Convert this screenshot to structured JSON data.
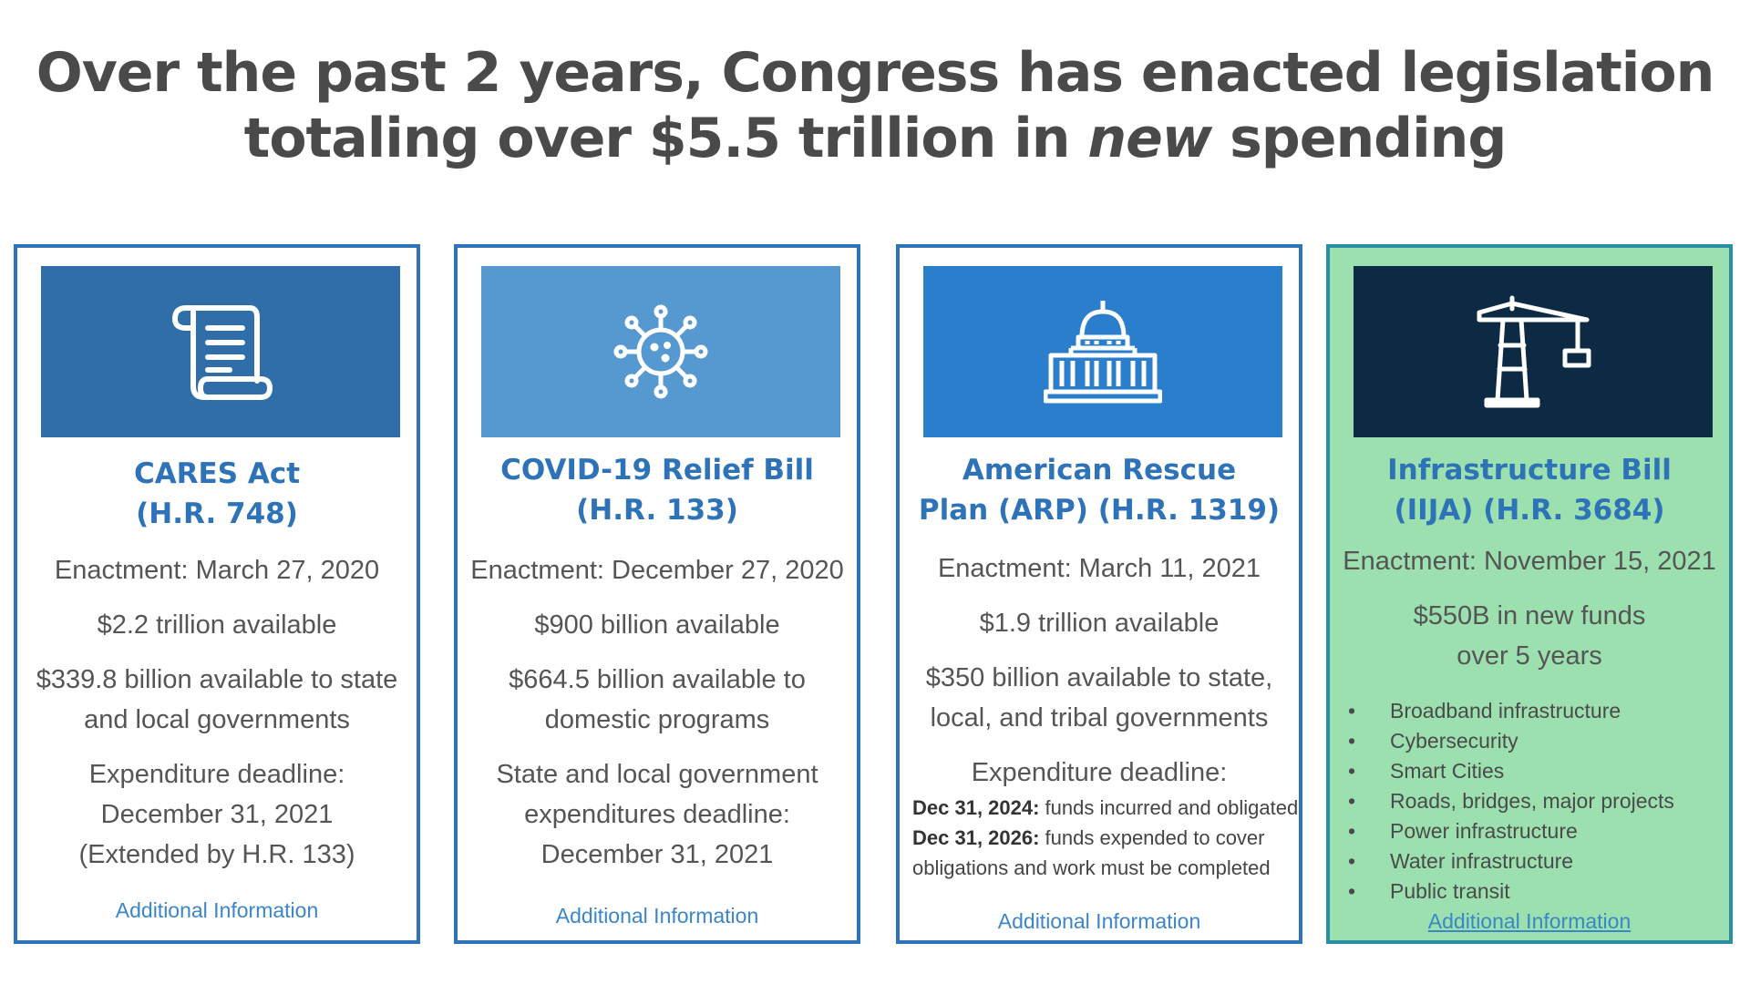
{
  "headline": {
    "line1": "Over the past 2 years, Congress has enacted legislation",
    "line2_before": "totaling over $5.5 trillion in ",
    "line2_em": "new",
    "line2_after": " spending"
  },
  "colors": {
    "accent_blue": "#2e72b8",
    "banner_cares": "#2f6ea8",
    "banner_covid": "#5599d0",
    "banner_arp": "#2a7ecb",
    "banner_infra": "#0d2a44",
    "infra_card_bg": "#9be0ae",
    "link_blue": "#3b86c8"
  },
  "cards": [
    {
      "icon": "scroll-icon",
      "title_line1": "CARES Act",
      "title_line2": "(H.R. 748)",
      "enactment": "Enactment: March 27, 2020",
      "available": "$2.2 trillion available",
      "detail_line1": "$339.8 billion available to state",
      "detail_line2": "and local governments",
      "deadline_line1": "Expenditure deadline:",
      "deadline_line2": "December 31, 2021",
      "deadline_line3": "(Extended by H.R. 133)",
      "link": "Additional Information"
    },
    {
      "icon": "virus-icon",
      "title_line1": "COVID-19 Relief Bill",
      "title_line2": "(H.R. 133)",
      "enactment": "Enactment: December 27, 2020",
      "available": "$900 billion available",
      "detail_line1": "$664.5 billion available to",
      "detail_line2": "domestic programs",
      "deadline_line1": "State and local government",
      "deadline_line2": "expenditures deadline:",
      "deadline_line3": "December 31, 2021",
      "link": "Additional Information"
    },
    {
      "icon": "capitol-icon",
      "title_line1": "American Rescue",
      "title_line2": "Plan (ARP) (H.R. 1319)",
      "enactment": "Enactment: March 11, 2021",
      "available": "$1.9 trillion available",
      "detail_line1": "$350 billion available to state,",
      "detail_line2": "local, and tribal governments",
      "deadline_line1": "Expenditure deadline:",
      "deadline_a_date": "Dec 31, 2024:",
      "deadline_a_text": " funds incurred and obligated",
      "deadline_b_date": "Dec 31, 2026:",
      "deadline_b_text": " funds expended to cover",
      "deadline_b_text2": "obligations and work must be completed",
      "link": "Additional Information"
    },
    {
      "icon": "crane-icon",
      "title_line1": "Infrastructure Bill",
      "title_line2": "(IIJA) (H.R. 3684)",
      "enactment": "Enactment: November 15, 2021",
      "funds_line1": "$550B in new funds",
      "funds_line2": "over 5 years",
      "bullets": [
        "Broadband infrastructure",
        "Cybersecurity",
        "Smart Cities",
        "Roads, bridges, major projects",
        "Power infrastructure",
        "Water infrastructure",
        "Public transit"
      ],
      "link": "Additional Information"
    }
  ]
}
